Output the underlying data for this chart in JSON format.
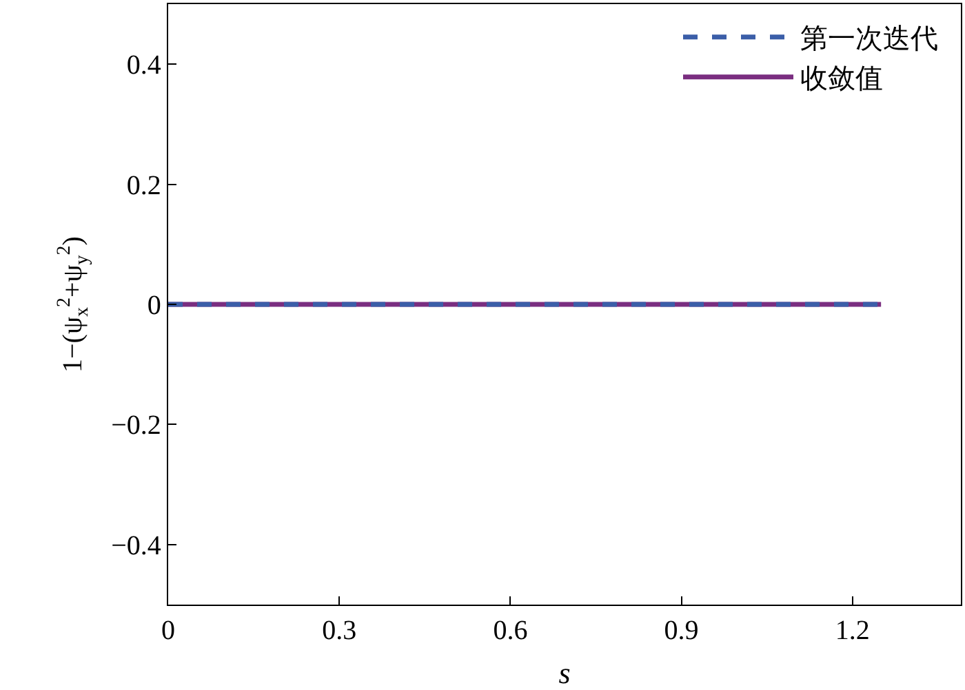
{
  "chart_data": {
    "type": "line",
    "xlabel": "s",
    "ylabel": "1−(ψ$_{x}$$^{2}$+ψ$_{y}$$^{2}$)",
    "series": [
      {
        "name": "第一次迭代",
        "color": "#3b5ea8",
        "line_style": "dashed",
        "values": [
          0,
          0
        ]
      },
      {
        "name": "收敛值",
        "color": "#7a2e80",
        "line_style": "solid",
        "values": [
          0,
          0
        ]
      }
    ],
    "x": [
      0,
      1.25
    ],
    "xlim": [
      0,
      1.39
    ],
    "xticks": [
      0,
      0.3,
      0.6,
      0.9,
      1.2
    ],
    "ylim": [
      -0.5,
      0.5
    ],
    "yticks": [
      {
        "value": -0.4,
        "label": "−0.4"
      },
      {
        "value": -0.2,
        "label": "−0.2"
      },
      0,
      0.2,
      0.4
    ],
    "grid": false,
    "legend": "top right"
  }
}
